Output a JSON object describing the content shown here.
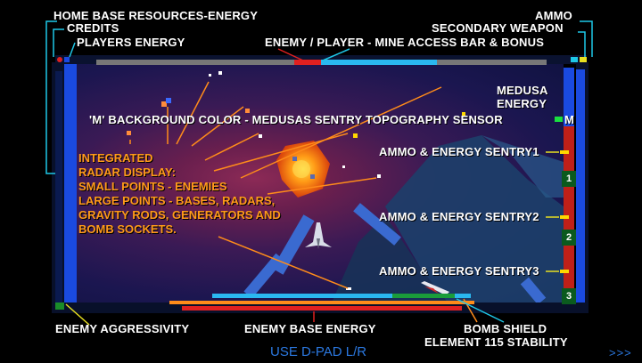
{
  "labels": {
    "home_base": "HOME BASE RESOURCES-ENERGY",
    "credits": "CREDITS",
    "players_energy": "PLAYERS ENERGY",
    "ammo": "AMMO",
    "secondary_weapon": "SECONDARY WEAPON",
    "mine_access": "ENEMY / PLAYER - MINE ACCESS BAR & BONUS",
    "medusa_line1": "MEDUSA",
    "medusa_line2": "ENERGY",
    "background_color": "'M' BACKGROUND COLOR - MEDUSAS SENTRY TOPOGRAPHY SENSOR",
    "m_marker": "M",
    "radar_lines": [
      "INTEGRATED",
      "RADAR DISPLAY:",
      "SMALL POINTS - ENEMIES",
      "LARGE POINTS - BASES, RADARS,",
      "GRAVITY RODS, GENERATORS AND",
      "BOMB SOCKETS."
    ],
    "sentry1": "AMMO & ENERGY SENTRY1",
    "sentry2": "AMMO & ENERGY SENTRY2",
    "sentry3": "AMMO & ENERGY SENTRY3",
    "enemy_aggressivity": "ENEMY AGGRESSIVITY",
    "enemy_base_energy": "ENEMY BASE ENERGY",
    "bomb_shield": "BOMB SHIELD",
    "element_stability": "ELEMENT 115 STABILITY"
  },
  "sentry_numbers": [
    "1",
    "2",
    "3"
  ],
  "hint": "USE D-PAD L/R",
  "next_icon": ">>>",
  "colors": {
    "label": "#ffffff",
    "radar_text": "#ff9a1a",
    "callout_cyan": "#1ec8e8",
    "callout_red": "#e02020",
    "callout_orange": "#ff8c1a",
    "callout_yellow": "#e8e020",
    "hud_blue": "#1a4ae0",
    "hint_blue": "#2b78e0"
  }
}
